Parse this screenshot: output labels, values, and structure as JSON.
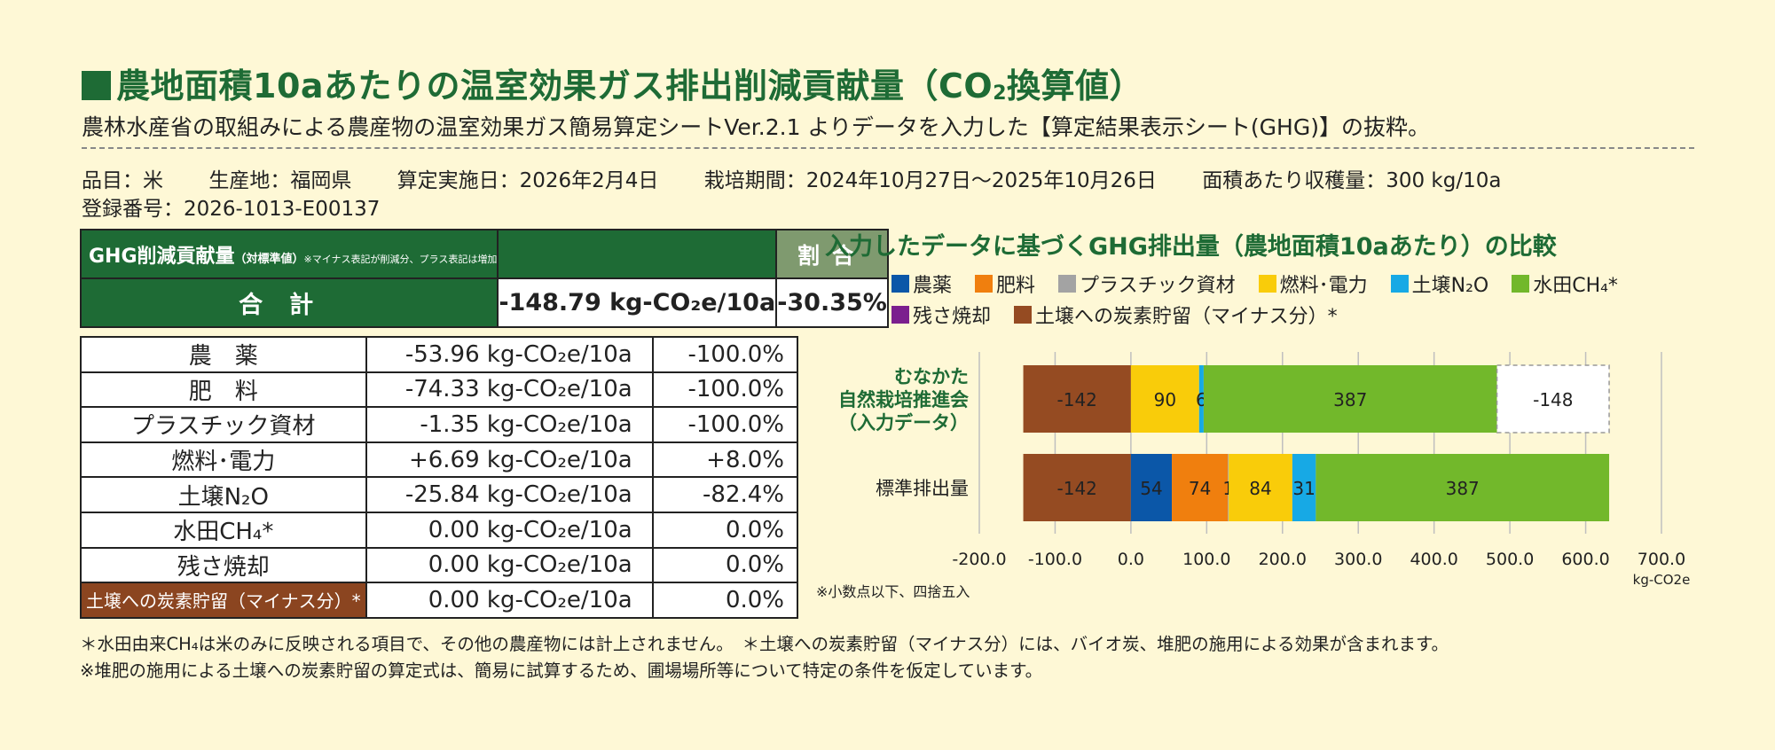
{
  "title": {
    "main": "農地面積10aあたりの温室効果ガス排出削減貢献量（CO",
    "sub": "2",
    "end": "換算値）"
  },
  "subtitle": "農林水産省の取組みによる農産物の温室効果ガス簡易算定シートVer.2.1 よりデータを入力した【算定結果表示シート(GHG)】の抜粋。",
  "meta": {
    "item": "品目：米",
    "location": "生産地：福岡県",
    "date": "算定実施日：2026年2月4日",
    "period": "栽培期間：2024年10月27日～2025年10月26日",
    "yield": "面積あたり収穫量：300 kg/10a",
    "reg": "登録番号：2026-1013-E00137"
  },
  "table": {
    "header_label": "GHG削減貢献量",
    "header_sub": "（対標準値）",
    "header_note": "※マイナス表記が削減分、プラス表記は増加",
    "header_ratio": "割合",
    "total_label": "合計",
    "total_value": "-148.79 kg-CO₂e/10a",
    "total_ratio": "-30.35%",
    "rows": [
      {
        "label": "農　薬",
        "value": "-53.96 kg-CO₂e/10a",
        "ratio": "-100.0%"
      },
      {
        "label": "肥　料",
        "value": "-74.33 kg-CO₂e/10a",
        "ratio": "-100.0%"
      },
      {
        "label": "プラスチック資材",
        "value": "-1.35 kg-CO₂e/10a",
        "ratio": "-100.0%"
      },
      {
        "label": "燃料･電力",
        "value": "+6.69 kg-CO₂e/10a",
        "ratio": "+8.0%"
      },
      {
        "label": "土壌N₂O",
        "value": "-25.84 kg-CO₂e/10a",
        "ratio": "-82.4%"
      },
      {
        "label": "水田CH₄*",
        "value": "0.00 kg-CO₂e/10a",
        "ratio": "0.0%"
      },
      {
        "label": "残さ焼却",
        "value": "0.00 kg-CO₂e/10a",
        "ratio": "0.0%"
      },
      {
        "label": "土壌への炭素貯留（マイナス分）*",
        "value": "0.00 kg-CO₂e/10a",
        "ratio": "0.0%"
      }
    ]
  },
  "notes": {
    "n1": "＊水田由来CH₄は米のみに反映される項目で、その他の農産物には計上されません。　＊土壌への炭素貯留（マイナス分）には、バイオ炭、堆肥の施用による効果が含まれます。",
    "n2": "※堆肥の施用による土壌への炭素貯留の算定式は、簡易に試算するため、圃場場所等について特定の条件を仮定しています。"
  },
  "chart_data": {
    "type": "bar",
    "orientation": "horizontal",
    "stacked": true,
    "title": "入力したデータに基づくGHG排出量（農地面積10aあたり）の比較",
    "xlabel": "kg-CO2e",
    "xlim": [
      -200,
      700
    ],
    "xticks": [
      "-200.0",
      "-100.0",
      "0.0",
      "100.0",
      "200.0",
      "300.0",
      "400.0",
      "500.0",
      "600.0",
      "700.0"
    ],
    "grid": "vertical",
    "categories": [
      "むなかた自然栽培推進会（入力データ）",
      "標準排出量"
    ],
    "category_lines": [
      [
        "むなかた",
        "自然栽培推進会",
        "（入力データ）"
      ],
      [
        "標準排出量"
      ]
    ],
    "legend": [
      {
        "name": "農薬",
        "color": "#0b57a8"
      },
      {
        "name": "肥料",
        "color": "#f07f0e"
      },
      {
        "name": "プラスチック資材",
        "color": "#a3a3a3"
      },
      {
        "name": "燃料･電力",
        "color": "#f9cc0a"
      },
      {
        "name": "土壌N₂O",
        "color": "#17a9e5"
      },
      {
        "name": "水田CH₄*",
        "color": "#72b82b"
      },
      {
        "name": "残さ焼却",
        "color": "#7b1f8e"
      },
      {
        "name": "土壌への炭素貯留（マイナス分）*",
        "color": "#954b22"
      }
    ],
    "bars": [
      {
        "category": "むなかた自然栽培推進会（入力データ）",
        "segments": [
          {
            "series": "土壌への炭素貯留（マイナス分）*",
            "start": -142,
            "value": 142,
            "label": "-142",
            "color": "#954b22"
          },
          {
            "series": "燃料･電力",
            "start": 0,
            "value": 90,
            "label": "90",
            "color": "#f9cc0a"
          },
          {
            "series": "土壌N₂O",
            "start": 90,
            "value": 6,
            "label": "6",
            "color": "#17a9e5"
          },
          {
            "series": "水田CH₄*",
            "start": 96,
            "value": 387,
            "label": "387",
            "color": "#72b82b"
          },
          {
            "series": "reduction",
            "start": 483,
            "value": 148,
            "label": "-148",
            "color": "#ffffff",
            "dashed": true
          }
        ]
      },
      {
        "category": "標準排出量",
        "segments": [
          {
            "series": "土壌への炭素貯留（マイナス分）*",
            "start": -142,
            "value": 142,
            "label": "-142",
            "color": "#954b22"
          },
          {
            "series": "農薬",
            "start": 0,
            "value": 54,
            "label": "54",
            "color": "#0b57a8"
          },
          {
            "series": "肥料",
            "start": 54,
            "value": 74,
            "label": "74",
            "color": "#f07f0e"
          },
          {
            "series": "プラスチック資材",
            "start": 128,
            "value": 1,
            "label": "1",
            "color": "#a3a3a3"
          },
          {
            "series": "燃料･電力",
            "start": 129,
            "value": 84,
            "label": "84",
            "color": "#f9cc0a"
          },
          {
            "series": "土壌N₂O",
            "start": 213,
            "value": 31,
            "label": "31",
            "color": "#17a9e5"
          },
          {
            "series": "水田CH₄*",
            "start": 244,
            "value": 387,
            "label": "387",
            "color": "#72b82b"
          }
        ]
      }
    ],
    "footnote": "※小数点以下、四捨五入"
  }
}
